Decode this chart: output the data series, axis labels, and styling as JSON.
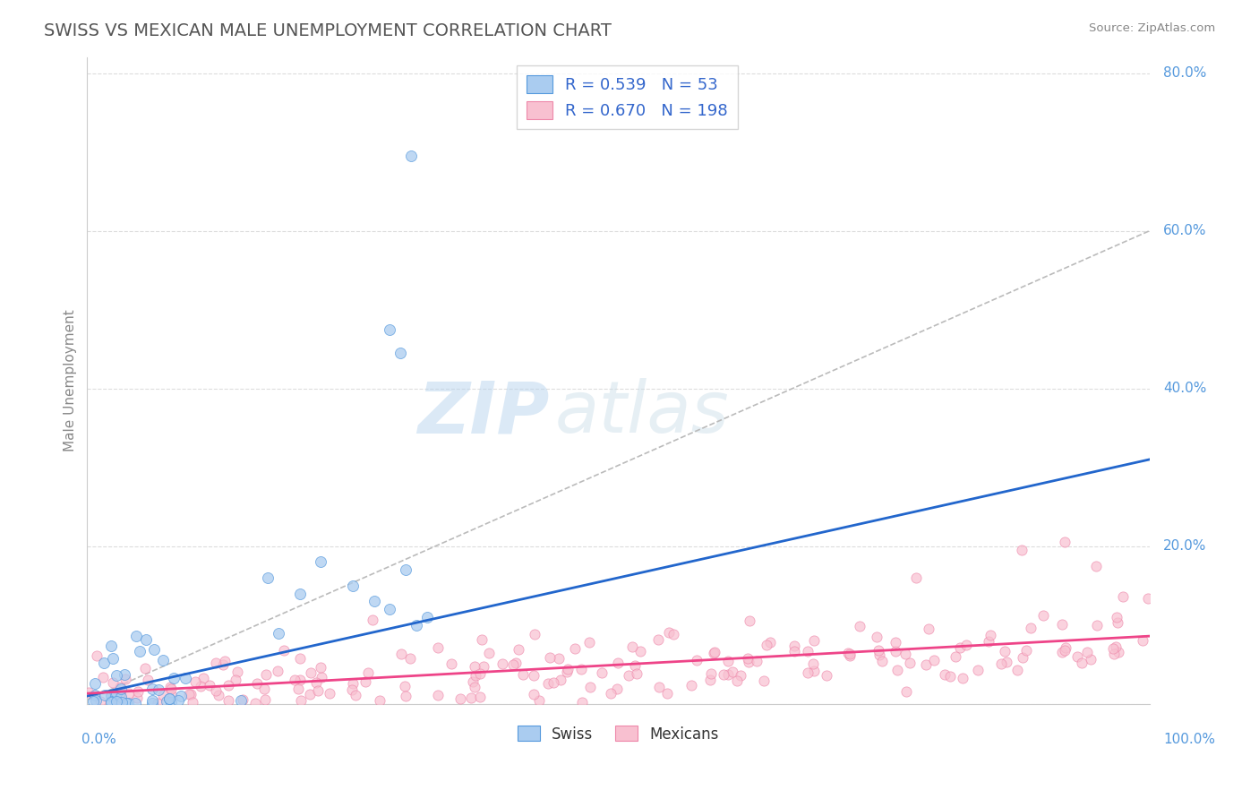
{
  "title": "SWISS VS MEXICAN MALE UNEMPLOYMENT CORRELATION CHART",
  "source_text": "Source: ZipAtlas.com",
  "ylabel": "Male Unemployment",
  "watermark_zip": "ZIP",
  "watermark_atlas": "atlas",
  "swiss_R": 0.539,
  "swiss_N": 53,
  "mexican_R": 0.67,
  "mexican_N": 198,
  "swiss_color": "#aaccf0",
  "swiss_edge_color": "#5599dd",
  "swiss_line_color": "#2266cc",
  "mexican_color": "#f8c0d0",
  "mexican_edge_color": "#ee88aa",
  "mexican_line_color": "#ee4488",
  "gray_dash_color": "#bbbbbb",
  "background_color": "#ffffff",
  "grid_color": "#dddddd",
  "title_color": "#555555",
  "legend_text_color": "#3366cc",
  "ytick_color": "#5599dd",
  "xtick_color": "#5599dd",
  "figsize": [
    14.06,
    8.92
  ],
  "dpi": 100,
  "ylim_max": 0.82,
  "yticks": [
    0.0,
    0.2,
    0.4,
    0.6,
    0.8
  ],
  "ytick_labels": [
    "0.0%",
    "20.0%",
    "40.0%",
    "60.0%",
    "80.0%"
  ]
}
